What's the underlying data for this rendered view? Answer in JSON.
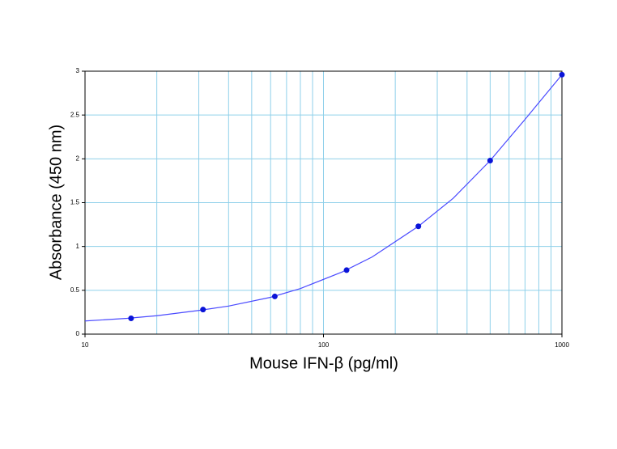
{
  "chart_data": {
    "type": "scatter",
    "x_label": "Mouse IFN-β (pg/ml)",
    "y_label": "Absorbance (450 nm)",
    "x_log": true,
    "minor_grid": true,
    "grid": true,
    "grid_color": "#8fd0ea",
    "xlim": [
      10,
      1000
    ],
    "xticks": [
      10,
      100,
      1000
    ],
    "ylim": [
      0,
      3
    ],
    "yticks": [
      0,
      0.5,
      1,
      1.5,
      2,
      2.5,
      3
    ],
    "points": {
      "color": "#0a14d8",
      "x": [
        15.6,
        31.25,
        62.5,
        125,
        250,
        500,
        1000
      ],
      "y": [
        0.18,
        0.28,
        0.43,
        0.73,
        1.23,
        1.98,
        2.96
      ]
    },
    "curve": {
      "color": "#4a4aff",
      "x": [
        10,
        15,
        20,
        30,
        40,
        60,
        80,
        120,
        160,
        250,
        350,
        500,
        700,
        1000
      ],
      "y": [
        0.15,
        0.18,
        0.21,
        0.27,
        0.32,
        0.42,
        0.52,
        0.71,
        0.88,
        1.23,
        1.55,
        1.98,
        2.45,
        2.96
      ]
    }
  }
}
